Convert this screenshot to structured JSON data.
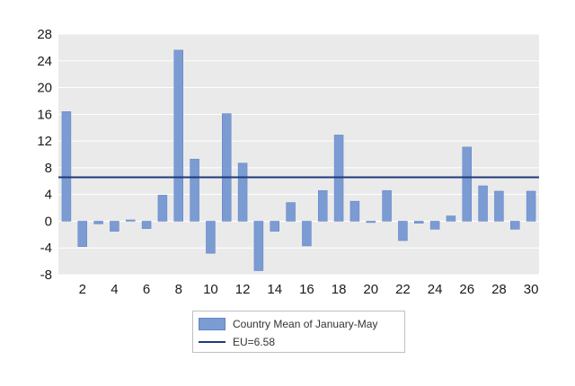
{
  "chart_data": {
    "type": "bar",
    "x": [
      1,
      2,
      3,
      4,
      5,
      6,
      7,
      8,
      9,
      10,
      11,
      12,
      13,
      14,
      15,
      16,
      17,
      18,
      19,
      20,
      21,
      22,
      23,
      24,
      25,
      26,
      27,
      28,
      29,
      30
    ],
    "series": [
      {
        "name": "Country Mean of January-May",
        "type": "bar",
        "values": [
          16.4,
          -3.8,
          -0.4,
          -1.5,
          0.2,
          -1.1,
          3.9,
          25.6,
          9.3,
          -4.8,
          16.1,
          8.7,
          -7.4,
          -1.5,
          2.8,
          -3.7,
          4.6,
          12.9,
          3.0,
          -0.2,
          4.6,
          -2.9,
          -0.3,
          -1.2,
          0.8,
          11.1,
          5.3,
          4.5,
          -1.2,
          4.5
        ]
      },
      {
        "name": "EU=6.58",
        "type": "line",
        "value": 6.58
      }
    ],
    "xticks": [
      "2",
      "4",
      "6",
      "8",
      "10",
      "12",
      "14",
      "16",
      "18",
      "20",
      "22",
      "24",
      "26",
      "28",
      "30"
    ],
    "yticks": [
      "28",
      "24",
      "20",
      "16",
      "12",
      "8",
      "4",
      "0",
      "-4",
      "-8"
    ],
    "ylim": [
      -8,
      28
    ],
    "xlabel": "",
    "ylabel": "",
    "title": "",
    "grid": "horizontal",
    "legend_position": "bottom",
    "colors": {
      "bar": "#7b9bd3",
      "bar_edge": "#6283c2",
      "line": "#1f3a7a",
      "plot_bg": "#eaeaea",
      "grid": "#ffffff"
    }
  }
}
